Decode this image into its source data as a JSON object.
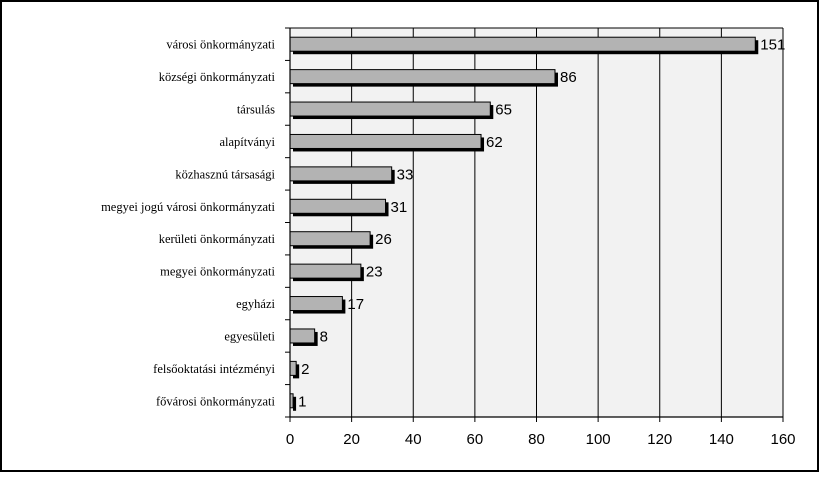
{
  "chart_data": {
    "type": "bar",
    "orientation": "horizontal",
    "categories": [
      "városi önkormányzati",
      "községi önkormányzati",
      "társulás",
      "alapítványi",
      "közhasznú társasági",
      "megyei jogú városi önkormányzati",
      "kerületi önkormányzati",
      "megyei önkormányzati",
      "egyházi",
      "egyesületi",
      "felsőoktatási intézményi",
      "fővárosi önkormányzati"
    ],
    "values": [
      151,
      86,
      65,
      62,
      33,
      31,
      26,
      23,
      17,
      8,
      2,
      1
    ],
    "xlim": [
      0,
      160
    ],
    "xticks": [
      0,
      20,
      40,
      60,
      80,
      100,
      120,
      140,
      160
    ],
    "grid": true,
    "colors": {
      "bar_fill": "#b3b3b3",
      "bar_shadow": "#000000",
      "plot_bg": "#f2f2f2",
      "grid": "#000000"
    }
  }
}
